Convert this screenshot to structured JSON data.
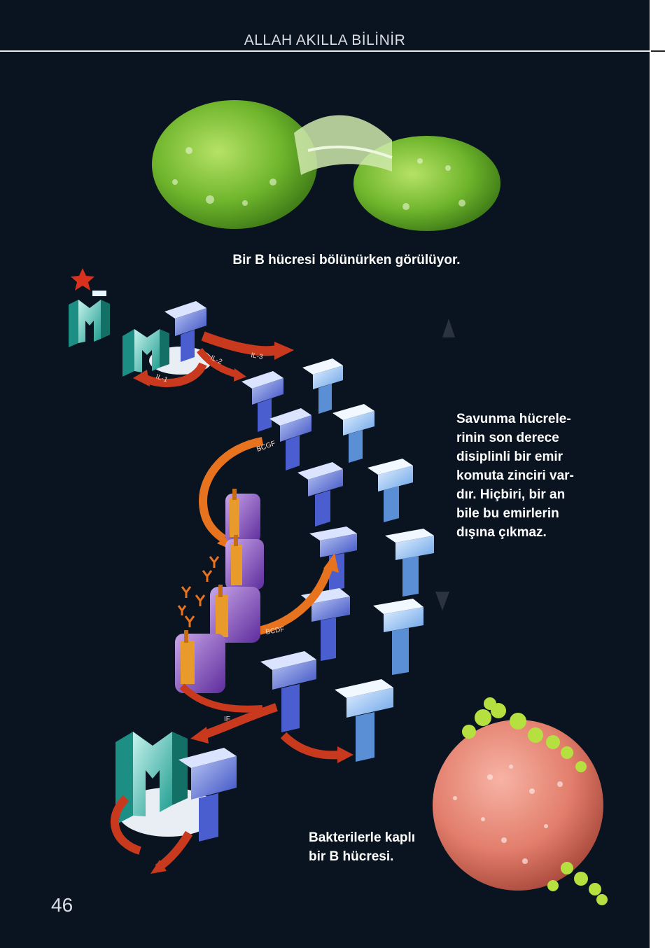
{
  "header": {
    "title": "ALLAH AKILLA BİLİNİR"
  },
  "captions": {
    "cell_dividing": "Bir B hücresi bölünürken görülüyor.",
    "command_chain": [
      "Savunma hücrele-",
      "rinin son derece",
      "disiplinli bir emir",
      "komuta zinciri var-",
      "dır. Hiçbiri, bir an",
      "bile bu emirlerin",
      "dışına çıkmaz."
    ],
    "bacteria_cell": [
      "Bakterilerle kaplı",
      "bir B hücresi."
    ]
  },
  "diagram_labels": {
    "il3": "IL-3",
    "il2": "IL-2",
    "il1": "IL-1",
    "bcgf": "BCGF",
    "bcdf": "BCDF",
    "if": "IF"
  },
  "footer": {
    "page_number": "46"
  },
  "colors": {
    "background": "#0a1420",
    "arrow_red": "#c8391e",
    "arrow_orange": "#e8731e",
    "cell_green": "#7cc23a",
    "cell_pink": "#e8857a"
  }
}
